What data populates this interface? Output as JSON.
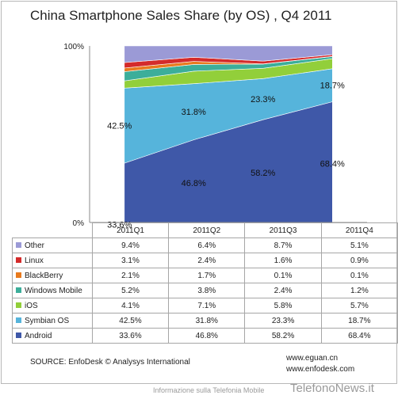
{
  "chart_data": {
    "type": "area",
    "stacked": true,
    "percent": true,
    "title": "China Smartphone Sales Share (by OS) , Q4 2011",
    "categories": [
      "2011Q1",
      "2011Q2",
      "2011Q3",
      "2011Q4"
    ],
    "y_ticks": [
      "100%",
      "0%"
    ],
    "ylim": [
      0,
      100
    ],
    "series": [
      {
        "name": "Android",
        "color": "#3f58a8",
        "values": [
          33.6,
          46.8,
          58.2,
          68.4
        ],
        "labels": [
          "33.6%",
          "46.8%",
          "58.2%",
          "68.4%"
        ]
      },
      {
        "name": "Symbian OS",
        "color": "#56b4db",
        "values": [
          42.5,
          31.8,
          23.3,
          18.7
        ],
        "labels": [
          "42.5%",
          "31.8%",
          "23.3%",
          "18.7%"
        ]
      },
      {
        "name": "iOS",
        "color": "#92cf3a",
        "values": [
          4.1,
          7.1,
          5.8,
          5.7
        ],
        "labels": [
          "4.1%",
          "7.1%",
          "5.8%",
          "5.7%"
        ]
      },
      {
        "name": "Windows Mobile",
        "color": "#3cae9a",
        "values": [
          5.2,
          3.8,
          2.4,
          1.2
        ],
        "labels": [
          "5.2%",
          "3.8%",
          "2.4%",
          "1.2%"
        ]
      },
      {
        "name": "BlackBerry",
        "color": "#e87a1e",
        "values": [
          2.1,
          1.7,
          0.1,
          0.1
        ],
        "labels": [
          "2.1%",
          "1.7%",
          "0.1%",
          "0.1%"
        ]
      },
      {
        "name": "Linux",
        "color": "#d42b2b",
        "values": [
          3.1,
          2.4,
          1.6,
          0.9
        ],
        "labels": [
          "3.1%",
          "2.4%",
          "1.6%",
          "0.9%"
        ]
      },
      {
        "name": "Other",
        "color": "#9b9ad6",
        "values": [
          9.4,
          6.4,
          8.7,
          5.1
        ],
        "labels": [
          "9.4%",
          "6.4%",
          "8.7%",
          "5.1%"
        ]
      }
    ],
    "table_row_order": [
      "Other",
      "Linux",
      "BlackBerry",
      "Windows Mobile",
      "iOS",
      "Symbian OS",
      "Android"
    ]
  },
  "footer": {
    "source": "SOURCE: EnfoDesk © Analysys International",
    "website1": "www.eguan.cn",
    "website2": "www.enfodesk.com",
    "caption": "Informazione sulla Telefonia Mobile",
    "brand": "TelefonoNews.it"
  }
}
